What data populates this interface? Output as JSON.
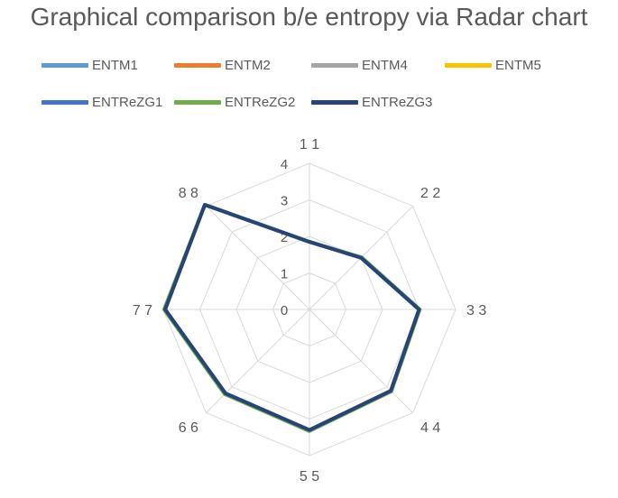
{
  "chart_data": {
    "type": "radar",
    "title": "Graphical comparison b/e entropy via Radar chart",
    "categories": [
      "1 1",
      "2 2",
      "3 3",
      "4 4",
      "5 5",
      "6 6",
      "7 7",
      "8 8"
    ],
    "radial_ticks": [
      0,
      1,
      2,
      3,
      4
    ],
    "rlim": [
      0,
      4
    ],
    "grid": true,
    "legend_position": "top",
    "series": [
      {
        "name": "ENTM1",
        "color": "#5B9BD5",
        "values": [
          1.85,
          2.0,
          3.0,
          3.15,
          3.3,
          3.25,
          3.95,
          4.05
        ]
      },
      {
        "name": "ENTM2",
        "color": "#ED7D31",
        "values": [
          1.85,
          2.0,
          3.0,
          3.15,
          3.3,
          3.25,
          3.95,
          4.05
        ]
      },
      {
        "name": "ENTM4",
        "color": "#A5A5A5",
        "values": [
          1.85,
          2.0,
          3.0,
          3.15,
          3.3,
          3.25,
          3.95,
          4.05
        ]
      },
      {
        "name": "ENTM5",
        "color": "#FFC000",
        "values": [
          1.85,
          2.0,
          3.0,
          3.15,
          3.3,
          3.25,
          3.95,
          4.05
        ]
      },
      {
        "name": "ENTReZG1",
        "color": "#4472C4",
        "values": [
          1.85,
          2.0,
          3.0,
          3.15,
          3.3,
          3.25,
          3.95,
          4.05
        ]
      },
      {
        "name": "ENTReZG2",
        "color": "#70AD47",
        "values": [
          1.85,
          2.02,
          3.02,
          3.17,
          3.33,
          3.28,
          3.98,
          4.05
        ]
      },
      {
        "name": "ENTReZG3",
        "color": "#264478",
        "values": [
          1.85,
          2.0,
          3.0,
          3.15,
          3.3,
          3.25,
          3.95,
          4.05
        ]
      }
    ]
  }
}
